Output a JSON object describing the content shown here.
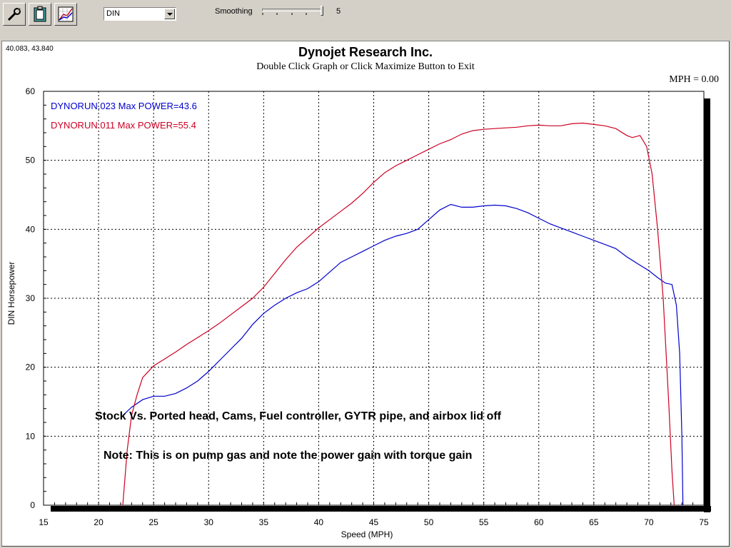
{
  "toolbar": {
    "buttons": [
      {
        "icon": "wrench-icon"
      },
      {
        "icon": "clipboard-icon"
      },
      {
        "icon": "graph-settings-icon"
      }
    ],
    "unit_select": "DIN",
    "smoothing_label": "Smoothing",
    "smoothing_value": "5",
    "smoothing_fraction": 1.0
  },
  "cursor_readout": "40.083, 43.840",
  "mph_readout": "MPH = 0.00",
  "colors": {
    "run1": "#0000cc",
    "run2": "#cc0022"
  },
  "chart_data": {
    "type": "line",
    "title": "Dynojet  Research  Inc.",
    "subtitle": "Double Click Graph or Click Maximize Button to Exit",
    "xlabel": "Speed (MPH)",
    "ylabel": "DIN Horsepower",
    "xlim": [
      15,
      75
    ],
    "ylim": [
      0,
      60
    ],
    "xticks": [
      "15",
      "20",
      "25",
      "30",
      "35",
      "40",
      "45",
      "50",
      "55",
      "60",
      "65",
      "70",
      "75"
    ],
    "yticks": [
      "0",
      "10",
      "20",
      "30",
      "40",
      "50",
      "60"
    ],
    "grid": true,
    "legend": [
      "DYNORUN.023  Max POWER=43.6",
      "DYNORUN.011  Max POWER=55.4"
    ],
    "annotations": [
      "Stock Vs. Ported head, Cams, Fuel controller, GYTR pipe, and airbox lid off",
      "Note: This is on pump gas and note the power gain with torque gain"
    ],
    "series": [
      {
        "values": [
          [
            22.2,
            13.0
          ],
          [
            23,
            14.2
          ],
          [
            24,
            15.3
          ],
          [
            25,
            15.8
          ],
          [
            26,
            15.8
          ],
          [
            27,
            16.2
          ],
          [
            28,
            17.0
          ],
          [
            29,
            18.0
          ],
          [
            30,
            19.4
          ],
          [
            31,
            21.0
          ],
          [
            32,
            22.6
          ],
          [
            33,
            24.2
          ],
          [
            34,
            26.2
          ],
          [
            35,
            27.8
          ],
          [
            36,
            29.0
          ],
          [
            37,
            30.0
          ],
          [
            38,
            30.8
          ],
          [
            39,
            31.4
          ],
          [
            40,
            32.4
          ],
          [
            41,
            33.8
          ],
          [
            42,
            35.2
          ],
          [
            43,
            36.0
          ],
          [
            44,
            36.8
          ],
          [
            45,
            37.6
          ],
          [
            46,
            38.4
          ],
          [
            47,
            39.0
          ],
          [
            48,
            39.4
          ],
          [
            49,
            40.0
          ],
          [
            50,
            41.4
          ],
          [
            51,
            42.8
          ],
          [
            52,
            43.6
          ],
          [
            53,
            43.2
          ],
          [
            54,
            43.2
          ],
          [
            55,
            43.4
          ],
          [
            56,
            43.5
          ],
          [
            57,
            43.4
          ],
          [
            58,
            43.0
          ],
          [
            59,
            42.4
          ],
          [
            60,
            41.6
          ],
          [
            61,
            40.8
          ],
          [
            62,
            40.2
          ],
          [
            63,
            39.6
          ],
          [
            64,
            39.0
          ],
          [
            65,
            38.4
          ],
          [
            66,
            37.8
          ],
          [
            67,
            37.2
          ],
          [
            68,
            36.0
          ],
          [
            69,
            35.0
          ],
          [
            70,
            34.0
          ],
          [
            70.8,
            33.0
          ],
          [
            71.5,
            32.2
          ],
          [
            72.1,
            32.0
          ],
          [
            72.5,
            29.0
          ],
          [
            72.8,
            22.0
          ],
          [
            73.0,
            10.0
          ],
          [
            73.1,
            0.0
          ]
        ]
      },
      {
        "values": [
          [
            22.2,
            0.0
          ],
          [
            22.6,
            8.0
          ],
          [
            23.0,
            13.0
          ],
          [
            23.5,
            16.0
          ],
          [
            24,
            18.5
          ],
          [
            25,
            20.2
          ],
          [
            26,
            21.2
          ],
          [
            27,
            22.2
          ],
          [
            28,
            23.3
          ],
          [
            29,
            24.3
          ],
          [
            30,
            25.3
          ],
          [
            31,
            26.4
          ],
          [
            32,
            27.6
          ],
          [
            33,
            28.8
          ],
          [
            34,
            30.0
          ],
          [
            35,
            31.6
          ],
          [
            36,
            33.6
          ],
          [
            37,
            35.6
          ],
          [
            38,
            37.4
          ],
          [
            39,
            38.8
          ],
          [
            40,
            40.2
          ],
          [
            41,
            41.4
          ],
          [
            42,
            42.6
          ],
          [
            43,
            43.8
          ],
          [
            44,
            45.2
          ],
          [
            45,
            46.8
          ],
          [
            46,
            48.2
          ],
          [
            47,
            49.2
          ],
          [
            48,
            50.0
          ],
          [
            49,
            50.8
          ],
          [
            50,
            51.6
          ],
          [
            51,
            52.4
          ],
          [
            52,
            53.0
          ],
          [
            53,
            53.8
          ],
          [
            54,
            54.3
          ],
          [
            55,
            54.5
          ],
          [
            56,
            54.6
          ],
          [
            57,
            54.7
          ],
          [
            58,
            54.8
          ],
          [
            59,
            55.0
          ],
          [
            60,
            55.1
          ],
          [
            61,
            55.0
          ],
          [
            62,
            55.0
          ],
          [
            63,
            55.3
          ],
          [
            64,
            55.4
          ],
          [
            65,
            55.2
          ],
          [
            66,
            55.0
          ],
          [
            67,
            54.6
          ],
          [
            68,
            53.6
          ],
          [
            68.5,
            53.3
          ],
          [
            69.2,
            53.6
          ],
          [
            69.8,
            52.0
          ],
          [
            70.3,
            48.0
          ],
          [
            70.8,
            40.0
          ],
          [
            71.3,
            30.0
          ],
          [
            71.8,
            15.0
          ],
          [
            72.1,
            5.0
          ],
          [
            72.3,
            0.0
          ]
        ]
      }
    ]
  }
}
